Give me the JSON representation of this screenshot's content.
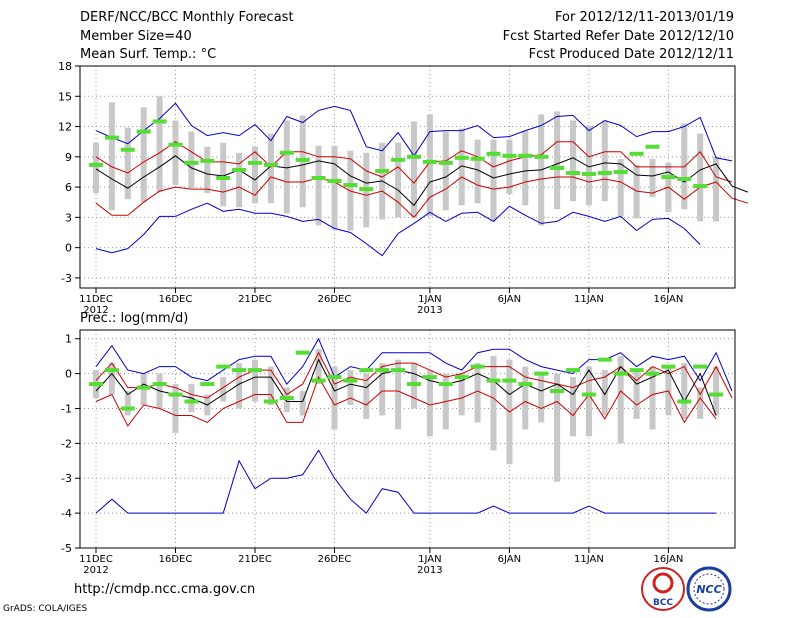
{
  "header": {
    "title": "DERF/NCC/BCC Monthly Forecast",
    "member_size": "Member Size=40",
    "variable": "Mean Surf. Temp.: °C",
    "forecast_period": "For 2012/12/11-2013/01/19",
    "started_refer": "Fcst Started Refer Date 2012/12/10",
    "produced": "Fcst Produced Date 2012/12/11"
  },
  "footer": {
    "url": "http://cmdp.ncc.cma.gov.cn",
    "credit": "GrADS: COLA/IGES"
  },
  "logos": {
    "bcc": "BCC",
    "ncc": "NCC"
  },
  "colors": {
    "max_min": "#0000cc",
    "spread": "#cc0000",
    "mean": "#000000",
    "box": "#c8c8c8",
    "median": "#55dd33",
    "grid": "#999999"
  },
  "chart_data": [
    {
      "type": "line",
      "title": "Mean Surf. Temp.: °C",
      "x_tick_labels": [
        "11DEC\n2012",
        "16DEC",
        "21DEC",
        "26DEC",
        "1JAN\n2013",
        "6JAN",
        "11JAN",
        "16JAN"
      ],
      "x_tick_days": [
        0,
        5,
        10,
        15,
        21,
        26,
        31,
        36
      ],
      "days": 40,
      "ylim": [
        -4,
        18
      ],
      "yticks": [
        -3,
        0,
        3,
        6,
        9,
        12,
        15,
        18
      ],
      "series": [
        {
          "name": "max",
          "color": "#0000cc",
          "values": [
            11.6,
            10.9,
            10.3,
            11.6,
            12.8,
            14.3,
            12.1,
            11.1,
            11.4,
            11.1,
            12.2,
            10.6,
            13.0,
            12.4,
            13.6,
            14.0,
            13.6,
            10.0,
            9.6,
            11.4,
            9.1,
            11.5,
            11.6,
            11.6,
            12.1,
            10.9,
            11.0,
            11.6,
            12.1,
            13.0,
            13.1,
            11.6,
            12.6,
            12.1,
            11.0,
            11.5,
            11.5,
            12.0,
            12.9,
            8.9,
            8.6
          ]
        },
        {
          "name": "upper",
          "color": "#cc0000",
          "values": [
            9.0,
            8.0,
            7.4,
            8.5,
            9.4,
            10.5,
            9.5,
            8.5,
            8.5,
            8.3,
            9.5,
            8.0,
            9.5,
            9.5,
            9.0,
            9.0,
            8.8,
            7.6,
            7.0,
            8.0,
            6.4,
            8.5,
            8.6,
            9.6,
            9.0,
            8.0,
            8.6,
            9.0,
            9.2,
            10.5,
            10.5,
            9.0,
            9.5,
            9.5,
            8.0,
            8.0,
            8.0,
            8.0,
            9.5,
            7.0,
            6.5
          ]
        },
        {
          "name": "mean",
          "color": "#000000",
          "values": [
            7.8,
            6.8,
            5.9,
            7.0,
            8.0,
            9.1,
            7.9,
            7.3,
            7.1,
            7.7,
            6.7,
            8.1,
            7.9,
            8.2,
            8.6,
            8.3,
            7.1,
            6.4,
            6.6,
            5.7,
            4.2,
            6.5,
            7.0,
            8.1,
            7.7,
            6.9,
            7.3,
            7.6,
            7.7,
            8.3,
            8.9,
            8.0,
            8.4,
            8.3,
            7.2,
            7.1,
            7.5,
            6.5,
            7.7,
            8.3,
            6.1,
            5.5
          ]
        },
        {
          "name": "lower",
          "color": "#cc0000",
          "values": [
            4.4,
            3.2,
            3.2,
            4.5,
            5.6,
            6.0,
            5.8,
            5.8,
            5.5,
            6.0,
            5.2,
            7.0,
            6.5,
            6.5,
            6.9,
            6.5,
            5.6,
            5.2,
            5.6,
            4.5,
            3.0,
            5.0,
            5.8,
            7.0,
            6.2,
            5.8,
            6.0,
            6.5,
            6.8,
            7.0,
            7.0,
            6.5,
            6.8,
            6.5,
            5.6,
            5.4,
            6.0,
            4.8,
            6.0,
            6.5,
            4.9,
            4.4
          ]
        },
        {
          "name": "min",
          "color": "#0000cc",
          "values": [
            -0.1,
            -0.5,
            -0.1,
            1.3,
            3.1,
            3.1,
            3.8,
            4.4,
            3.6,
            3.8,
            3.4,
            3.4,
            3.1,
            2.6,
            2.8,
            1.9,
            1.5,
            0.4,
            -0.8,
            1.4,
            2.4,
            3.5,
            2.6,
            3.4,
            3.5,
            2.6,
            4.1,
            3.2,
            2.4,
            2.6,
            3.5,
            3.1,
            2.6,
            3.1,
            1.7,
            2.8,
            2.9,
            1.9,
            0.3
          ]
        }
      ],
      "boxes": {
        "top": [
          10.4,
          14.4,
          11.9,
          13.9,
          15.0,
          12.6,
          11.5,
          10.0,
          10.4,
          9.4,
          10.0,
          11.3,
          12.6,
          13.1,
          10.1,
          10.1,
          9.6,
          9.4,
          10.4,
          10.4,
          12.5,
          13.2,
          11.5,
          11.8,
          10.7,
          10.7,
          10.7,
          11.6,
          13.2,
          13.5,
          12.6,
          12.1,
          12.6,
          8.8,
          8.2,
          8.8,
          8.4,
          12.3,
          11.3,
          9.0
        ],
        "bottom": [
          5.4,
          3.7,
          4.8,
          4.5,
          5.5,
          6.2,
          5.9,
          5.4,
          4.1,
          4.0,
          4.4,
          4.4,
          3.4,
          4.0,
          2.2,
          1.8,
          1.7,
          2.0,
          2.8,
          3.0,
          3.0,
          3.1,
          3.7,
          4.2,
          4.4,
          2.6,
          5.3,
          4.2,
          2.2,
          3.8,
          4.6,
          4.2,
          4.6,
          3.1,
          2.9,
          5.0,
          3.5,
          3.8,
          2.6,
          2.6
        ],
        "median": [
          8.2,
          10.9,
          9.7,
          11.5,
          12.5,
          10.2,
          8.4,
          8.6,
          6.9,
          7.7,
          8.4,
          8.2,
          9.4,
          8.7,
          6.9,
          6.6,
          6.2,
          5.8,
          7.6,
          8.7,
          9.0,
          8.5,
          8.4,
          8.9,
          8.8,
          9.3,
          9.1,
          9.1,
          9.0,
          7.9,
          7.4,
          7.3,
          7.4,
          7.5,
          9.3,
          10.0,
          7.0,
          6.8,
          6.1
        ]
      }
    },
    {
      "type": "line",
      "title": "Prec.: log(mm/d)",
      "x_tick_labels": [
        "11DEC\n2012",
        "16DEC",
        "21DEC",
        "26DEC",
        "1JAN\n2013",
        "6JAN",
        "11JAN",
        "16JAN"
      ],
      "x_tick_days": [
        0,
        5,
        10,
        15,
        21,
        26,
        31,
        36
      ],
      "days": 40,
      "ylim": [
        -5,
        1.25
      ],
      "yticks": [
        -5,
        -4,
        -3,
        -2,
        -1,
        0,
        1
      ],
      "series": [
        {
          "name": "max",
          "color": "#0000cc",
          "values": [
            0.2,
            0.8,
            0.1,
            0.0,
            0.2,
            0.2,
            -0.1,
            -0.2,
            0.1,
            0.4,
            0.5,
            0.5,
            -0.3,
            0.2,
            1.0,
            -0.1,
            0.2,
            0.1,
            0.6,
            0.6,
            0.6,
            0.6,
            0.3,
            0.1,
            0.6,
            0.7,
            0.7,
            0.4,
            0.2,
            0.1,
            0.0,
            0.4,
            0.4,
            0.6,
            0.2,
            0.5,
            0.4,
            0.5,
            -0.2,
            0.6,
            -0.5
          ]
        },
        {
          "name": "upper",
          "color": "#cc0000",
          "values": [
            -0.2,
            0.3,
            -0.4,
            -0.4,
            -0.3,
            -0.4,
            -0.6,
            -0.7,
            -0.4,
            -0.1,
            0.1,
            0.1,
            -0.6,
            -0.3,
            0.6,
            -0.3,
            -0.1,
            -0.2,
            0.2,
            0.3,
            0.3,
            0.1,
            -0.1,
            0.0,
            0.2,
            0.2,
            0.2,
            -0.1,
            -0.2,
            -0.3,
            -0.4,
            -0.2,
            -0.1,
            0.2,
            -0.2,
            0.2,
            0.0,
            0.2,
            -0.6,
            0.2,
            -0.7
          ]
        },
        {
          "name": "mean",
          "color": "#000000",
          "values": [
            -0.5,
            0.0,
            -0.6,
            -0.3,
            -0.5,
            -0.6,
            -0.7,
            -0.9,
            -0.6,
            -0.3,
            -0.1,
            -0.1,
            -0.8,
            -0.8,
            0.4,
            -0.5,
            -0.3,
            -0.4,
            0.0,
            0.1,
            0.0,
            -0.2,
            -0.3,
            -0.2,
            0.0,
            -0.2,
            -0.6,
            -0.3,
            -0.5,
            -0.3,
            -0.6,
            0.1,
            -0.6,
            0.2,
            -0.3,
            -0.1,
            0.1,
            -0.8,
            0.0,
            -1.2
          ]
        },
        {
          "name": "lower",
          "color": "#cc0000",
          "values": [
            -0.8,
            -0.6,
            -1.5,
            -0.9,
            -1.0,
            -1.2,
            -1.2,
            -1.4,
            -1.0,
            -0.8,
            -0.6,
            -0.6,
            -1.4,
            -1.4,
            -0.1,
            -0.9,
            -0.7,
            -0.9,
            -0.5,
            -0.5,
            -0.7,
            -0.9,
            -0.8,
            -0.7,
            -0.5,
            -0.7,
            -1.1,
            -0.8,
            -1.0,
            -0.8,
            -1.2,
            -0.6,
            -1.3,
            -0.5,
            -0.9,
            -0.6,
            -0.5,
            -1.4,
            -0.7,
            -1.3
          ]
        },
        {
          "name": "min",
          "color": "#0000cc",
          "values": [
            -4.0,
            -3.6,
            -4.0,
            -4.0,
            -4.0,
            -4.0,
            -4.0,
            -4.0,
            -4.0,
            -2.5,
            -3.3,
            -3.0,
            -3.0,
            -2.9,
            -2.2,
            -3.0,
            -3.6,
            -4.0,
            -3.3,
            -3.4,
            -4.0,
            -4.0,
            -4.0,
            -4.0,
            -4.0,
            -3.8,
            -4.0,
            -4.0,
            -4.0,
            -4.0,
            -4.0,
            -3.8,
            -4.0,
            -4.0,
            -4.0,
            -4.0,
            -4.0,
            -4.0,
            -4.0,
            -4.0
          ]
        }
      ],
      "boxes": {
        "top": [
          0.1,
          0.3,
          -0.5,
          0.0,
          0.0,
          -0.3,
          -0.3,
          -0.6,
          -0.1,
          0.3,
          0.4,
          0.2,
          -0.4,
          -0.5,
          0.7,
          0.2,
          0.1,
          0.0,
          0.3,
          0.4,
          0.3,
          0.1,
          0.0,
          0.0,
          0.3,
          0.5,
          0.4,
          0.2,
          0.0,
          0.0,
          -0.1,
          0.2,
          0.1,
          0.5,
          0.1,
          0.2,
          0.2,
          0.3,
          -0.4,
          0.2
        ],
        "bottom": [
          -0.7,
          -0.6,
          -1.2,
          -0.9,
          -1.0,
          -1.7,
          -1.1,
          -1.2,
          -0.8,
          -1.0,
          -0.8,
          -0.9,
          -1.1,
          -1.2,
          -0.3,
          -1.6,
          -0.9,
          -1.3,
          -1.2,
          -1.6,
          -1.0,
          -1.8,
          -1.6,
          -1.2,
          -1.4,
          -2.2,
          -2.6,
          -1.6,
          -1.4,
          -3.1,
          -1.8,
          -1.8,
          -1.2,
          -2.0,
          -1.3,
          -1.6,
          -1.2,
          -1.3,
          -1.3,
          -1.2
        ],
        "median": [
          -0.3,
          0.1,
          -1.0,
          -0.4,
          -0.3,
          -0.6,
          -0.8,
          -0.3,
          0.2,
          0.1,
          0.1,
          -0.8,
          -0.7,
          0.6,
          -0.2,
          -0.1,
          -0.2,
          0.1,
          0.1,
          0.1,
          -0.3,
          -0.1,
          -0.3,
          -0.1,
          0.2,
          -0.2,
          -0.2,
          -0.3,
          0.0,
          -0.5,
          0.1,
          -0.6,
          0.4,
          0.0,
          0.1,
          0.0,
          0.2,
          -0.8,
          0.2,
          -0.6
        ]
      }
    }
  ]
}
